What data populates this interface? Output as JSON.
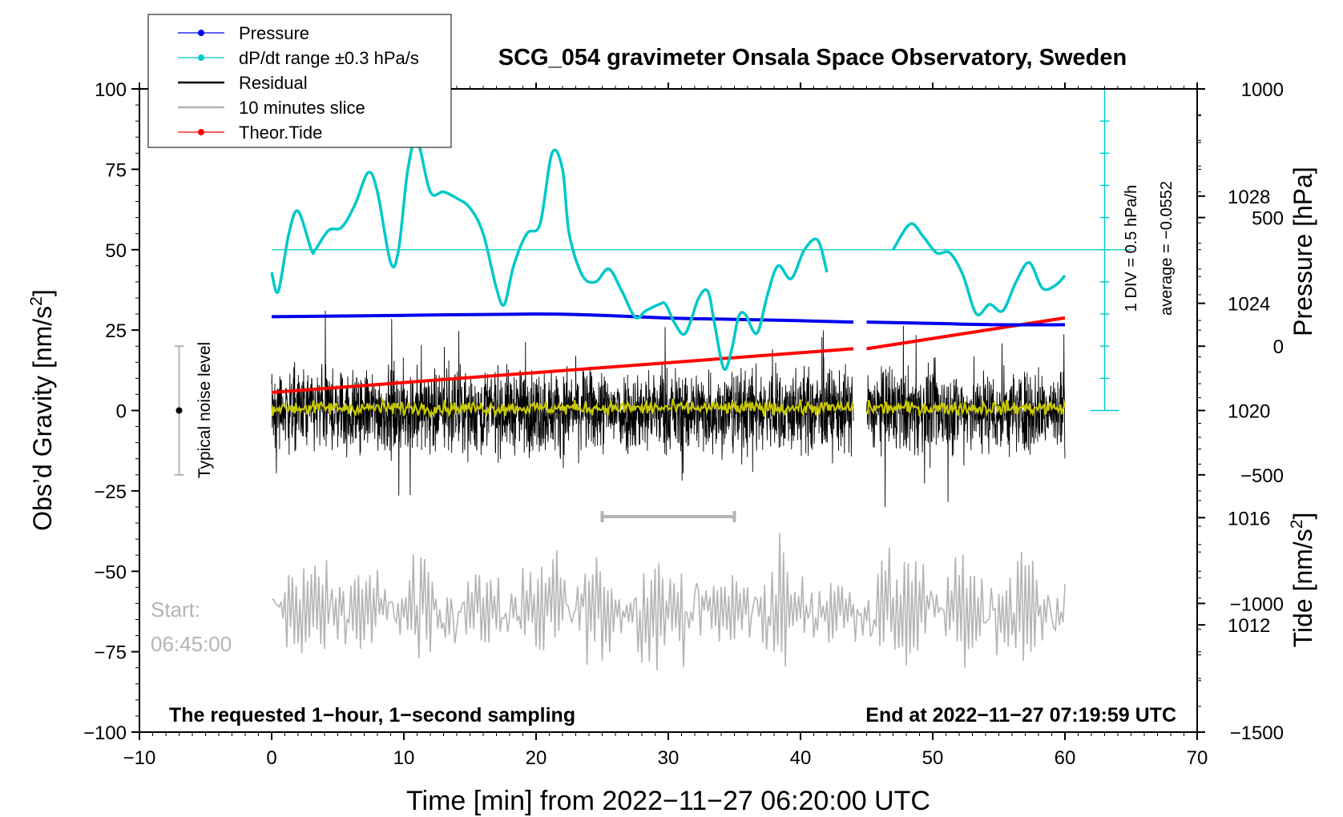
{
  "chart_data": {
    "type": "line",
    "title": "SCG_054 gravimeter Onsala Space Observatory, Sweden",
    "xlabel": "Time [min] from 2022−11−27 06:20:00 UTC",
    "xlim": [
      -10,
      70
    ],
    "xticks": [
      -10,
      0,
      10,
      20,
      30,
      40,
      50,
      60,
      70
    ],
    "xtick_labels": [
      "−10",
      "0",
      "10",
      "20",
      "30",
      "40",
      "50",
      "60",
      "70"
    ],
    "left_axis": {
      "label": "Obs’d Gravity [nm/s",
      "label_sup": "2",
      "label_tail": "]",
      "ylim": [
        -100,
        100
      ],
      "ticks": [
        100,
        75,
        50,
        25,
        0,
        -25,
        -50,
        -75,
        -100
      ],
      "tick_labels": [
        "100",
        "75",
        "50",
        "25",
        "0",
        "−25",
        "−50",
        "−75",
        "−100"
      ]
    },
    "pressure_axis": {
      "label": "Pressure [hPa]",
      "ylim": [
        1008,
        1032
      ],
      "ticks": [
        1028,
        1024,
        1020,
        1016,
        1012
      ],
      "tick_labels": [
        "1028",
        "1024",
        "1020",
        "1016",
        "1012"
      ]
    },
    "tide_axis": {
      "label": "Tide [nm/s",
      "label_sup": "2",
      "label_tail": "]",
      "ylim": [
        -1500,
        1000
      ],
      "ticks": [
        1000,
        500,
        0,
        -500,
        -1000,
        -1500
      ],
      "tick_labels": [
        "1000",
        "500",
        "0",
        "−500",
        "−1000",
        "−1500"
      ]
    },
    "legend": {
      "position": "top-left",
      "entries": [
        {
          "label": "Pressure",
          "color": "#0000ee",
          "marker": true
        },
        {
          "label": "dP/dt range ±0.3 hPa/s",
          "color": "#00c8c8",
          "marker": true
        },
        {
          "label": "Residual",
          "color": "#000000",
          "marker": false
        },
        {
          "label": "10 minutes slice",
          "color": "#b4b4b4",
          "marker": false
        },
        {
          "label": "Theor.Tide",
          "color": "#ff0000",
          "marker": true
        }
      ]
    },
    "series": [
      {
        "name": "Pressure",
        "axis": "pressure",
        "color": "#0000ee",
        "segments": [
          {
            "x": [
              0,
              10,
              20,
              25,
              30,
              35,
              40,
              44
            ],
            "y": [
              1023.5,
              1023.55,
              1023.6,
              1023.55,
              1023.45,
              1023.4,
              1023.35,
              1023.3
            ]
          },
          {
            "x": [
              45,
              50,
              55,
              60
            ],
            "y": [
              1023.3,
              1023.25,
              1023.2,
              1023.2
            ]
          }
        ]
      },
      {
        "name": "dP/dt",
        "axis": "left",
        "color": "#00c8c8",
        "segments": [
          {
            "x": [
              0,
              0.5,
              1.3,
              2,
              3,
              3.3,
              4.3,
              5.3,
              6.3,
              7.3,
              8,
              9,
              9.6,
              10.3,
              11,
              12,
              13,
              14,
              15,
              16,
              17,
              17.6,
              18.3,
              19.3,
              20.3,
              21.2,
              22,
              22.5,
              23.5,
              24.5,
              25.5,
              26.5,
              27.5,
              28.3,
              29.3,
              29.8,
              30.5,
              31.3,
              32.3,
              33,
              33.5,
              34.2,
              34.8,
              35.3,
              35.8,
              36.7,
              37.5,
              38.3,
              39.3,
              40.3,
              41.3,
              42
            ],
            "y": [
              43,
              37,
              55,
              62,
              50,
              50,
              56,
              57,
              64,
              74,
              68,
              46,
              50,
              75,
              84,
              68,
              68,
              66,
              63,
              55,
              38,
              33,
              45,
              55,
              58,
              80,
              75,
              55,
              42,
              40,
              44,
              37,
              29,
              31,
              33,
              33,
              27,
              24,
              35,
              37,
              27,
              13,
              19,
              29,
              30,
              24,
              36,
              45,
              41,
              50,
              53,
              43
            ]
          },
          {
            "x": [
              47,
              48.3,
              49.3,
              50.3,
              51.3,
              52.3,
              53.3,
              54.3,
              55.3,
              56.3,
              57.3,
              58.3,
              59.3,
              60
            ],
            "y": [
              50,
              58,
              54,
              49,
              49,
              42,
              30,
              33,
              31,
              40,
              46,
              38,
              39,
              42
            ]
          }
        ]
      },
      {
        "name": "Residual",
        "axis": "left",
        "color": "#000000",
        "amplitude": 12,
        "segments": [
          {
            "x": [
              0,
              44
            ]
          },
          {
            "x": [
              45,
              60
            ]
          }
        ]
      },
      {
        "name": "Residual smoothed",
        "axis": "left",
        "color": "#c8c800",
        "amplitude": 2.5,
        "segments": [
          {
            "x": [
              0,
              44
            ]
          },
          {
            "x": [
              45,
              60
            ]
          }
        ]
      },
      {
        "name": "10 minutes slice",
        "axis": "left",
        "color": "#b4b4b4",
        "center": -62,
        "amplitude": 11,
        "x": [
          0,
          60
        ]
      },
      {
        "name": "Theor.Tide",
        "axis": "tide",
        "color": "#ff0000",
        "segments": [
          {
            "x": [
              0,
              44
            ],
            "y": [
              -180,
              -10
            ]
          },
          {
            "x": [
              45,
              60
            ],
            "y": [
              -10,
              110
            ]
          }
        ]
      }
    ],
    "slice_marker": {
      "x": [
        25,
        35
      ],
      "y": -33
    },
    "noise_bar": {
      "x": -7,
      "y": 0,
      "range": [
        -20,
        20
      ],
      "label": "Typical noise level"
    },
    "scale_annotation": {
      "line1": "1 DIV = 0.5 hPa/h",
      "line2": "average = −0.0552",
      "x": 63,
      "ylim": [
        0,
        100
      ],
      "ref": 50
    },
    "annotations": {
      "start_label": "Start:",
      "start_time": "06:45:00",
      "bottom_left": "The requested 1−hour, 1−second sampling",
      "bottom_right": "End at 2022−11−27 07:19:59 UTC"
    }
  }
}
